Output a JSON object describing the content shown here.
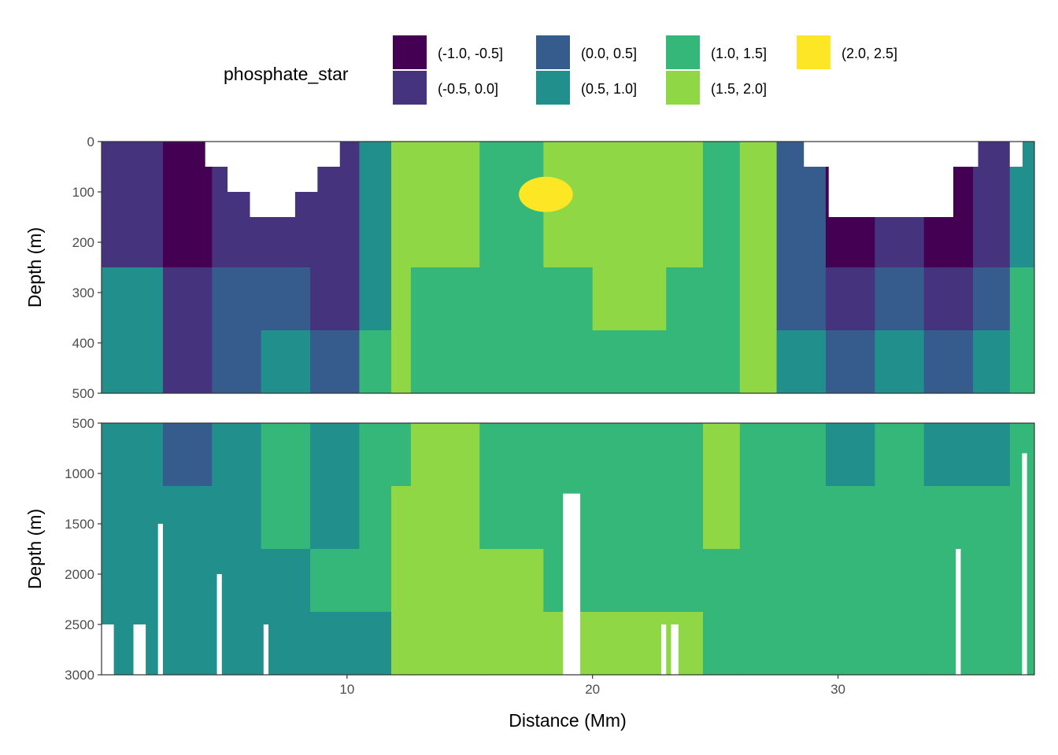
{
  "chart_data": {
    "type": "heatmap",
    "subtype": "filled-contour",
    "xlabel": "Distance (Mm)",
    "xlim": [
      0,
      38
    ],
    "x_ticks": [
      10,
      20,
      30
    ],
    "legend": {
      "title": "phosphate_star",
      "placement": "top",
      "bins": [
        {
          "label": "(-1.0, -0.5]",
          "color": "#440154"
        },
        {
          "label": "(-0.5, 0.0]",
          "color": "#46337E"
        },
        {
          "label": "(0.0, 0.5]",
          "color": "#365C8D"
        },
        {
          "label": "(0.5, 1.0]",
          "color": "#21908C"
        },
        {
          "label": "(1.0, 1.5]",
          "color": "#35B779"
        },
        {
          "label": "(1.5, 2.0]",
          "color": "#8FD744"
        },
        {
          "label": "(2.0, 2.5]",
          "color": "#FDE725"
        }
      ]
    },
    "panels": [
      {
        "ylabel": "Depth (m)",
        "ylim": [
          0,
          500
        ],
        "y_reversed": true,
        "y_ticks": [
          0,
          100,
          200,
          300,
          400,
          500
        ],
        "grid": true,
        "section_x": [
          0,
          2.5,
          4.5,
          6.5,
          8.5,
          10.5,
          11.8,
          12.6,
          15.4,
          18.0,
          20.0,
          23.0,
          24.5,
          26.0,
          27.5,
          29.5,
          31.5,
          33.5,
          35.5,
          37.0,
          38.0
        ],
        "blank_regions": [
          {
            "x": [
              2.4,
              10.6
            ],
            "max_depth": [
              0,
              0,
              50,
              100,
              150,
              150,
              100,
              50,
              0
            ]
          },
          {
            "x": [
              27.6,
              36.7
            ],
            "max_depth": [
              0,
              50,
              150,
              150,
              150,
              150,
              150,
              50,
              0
            ]
          },
          {
            "x": [
              37.0,
              38.0
            ],
            "max_depth": [
              50,
              0
            ]
          }
        ],
        "bin_index_by_section": [
          [
            1,
            0,
            1,
            1,
            1,
            3,
            5,
            5,
            4,
            5,
            5,
            5,
            4,
            5,
            2,
            0,
            1,
            0,
            1,
            3,
            5
          ],
          [
            1,
            0,
            1,
            1,
            1,
            3,
            5,
            5,
            4,
            5,
            5,
            5,
            4,
            5,
            2,
            0,
            1,
            0,
            1,
            3,
            5
          ],
          [
            3,
            1,
            2,
            2,
            1,
            3,
            5,
            4,
            4,
            4,
            5,
            4,
            4,
            5,
            2,
            1,
            2,
            1,
            2,
            4,
            4
          ],
          [
            3,
            1,
            2,
            3,
            2,
            4,
            5,
            4,
            4,
            4,
            4,
            4,
            4,
            5,
            3,
            2,
            3,
            2,
            3,
            4,
            4
          ]
        ],
        "highlight_region": {
          "x": [
            17.0,
            19.2
          ],
          "depth": [
            70,
            140
          ],
          "bin_index": 6
        }
      },
      {
        "ylabel": "Depth (m)",
        "ylim": [
          500,
          3000
        ],
        "y_reversed": true,
        "y_ticks": [
          500,
          1000,
          1500,
          2000,
          2500,
          3000
        ],
        "grid": true,
        "section_x": [
          0,
          2.5,
          4.5,
          6.5,
          8.5,
          10.5,
          11.8,
          12.6,
          15.4,
          18.0,
          20.0,
          23.0,
          24.5,
          26.0,
          27.5,
          29.5,
          31.5,
          33.5,
          35.5,
          37.0,
          38.0
        ],
        "bin_index_by_section": [
          [
            3,
            2,
            3,
            4,
            3,
            4,
            4,
            5,
            4,
            4,
            4,
            4,
            5,
            4,
            4,
            3,
            4,
            3,
            3,
            4,
            4
          ],
          [
            3,
            3,
            3,
            4,
            3,
            4,
            5,
            5,
            4,
            4,
            4,
            4,
            5,
            4,
            4,
            4,
            4,
            4,
            4,
            4,
            4
          ],
          [
            3,
            3,
            3,
            3,
            4,
            4,
            5,
            5,
            5,
            4,
            4,
            4,
            4,
            4,
            4,
            4,
            4,
            4,
            4,
            4,
            4
          ],
          [
            3,
            3,
            3,
            3,
            3,
            3,
            5,
            5,
            5,
            5,
            5,
            5,
            4,
            4,
            4,
            4,
            4,
            4,
            4,
            4,
            4
          ]
        ],
        "blank_columns": [
          {
            "x": [
              0.0,
              0.5
            ],
            "from_depth": 2500
          },
          {
            "x": [
              1.3,
              1.8
            ],
            "from_depth": 2500
          },
          {
            "x": [
              2.3,
              2.5
            ],
            "from_depth": 1500
          },
          {
            "x": [
              4.7,
              4.9
            ],
            "from_depth": 2000
          },
          {
            "x": [
              6.6,
              6.8
            ],
            "from_depth": 2500
          },
          {
            "x": [
              18.8,
              19.5
            ],
            "from_depth": 1200
          },
          {
            "x": [
              22.8,
              23.0
            ],
            "from_depth": 2500
          },
          {
            "x": [
              23.2,
              23.5
            ],
            "from_depth": 2500
          },
          {
            "x": [
              34.8,
              35.0
            ],
            "from_depth": 1750
          },
          {
            "x": [
              37.5,
              37.7
            ],
            "from_depth": 800
          }
        ]
      }
    ]
  }
}
